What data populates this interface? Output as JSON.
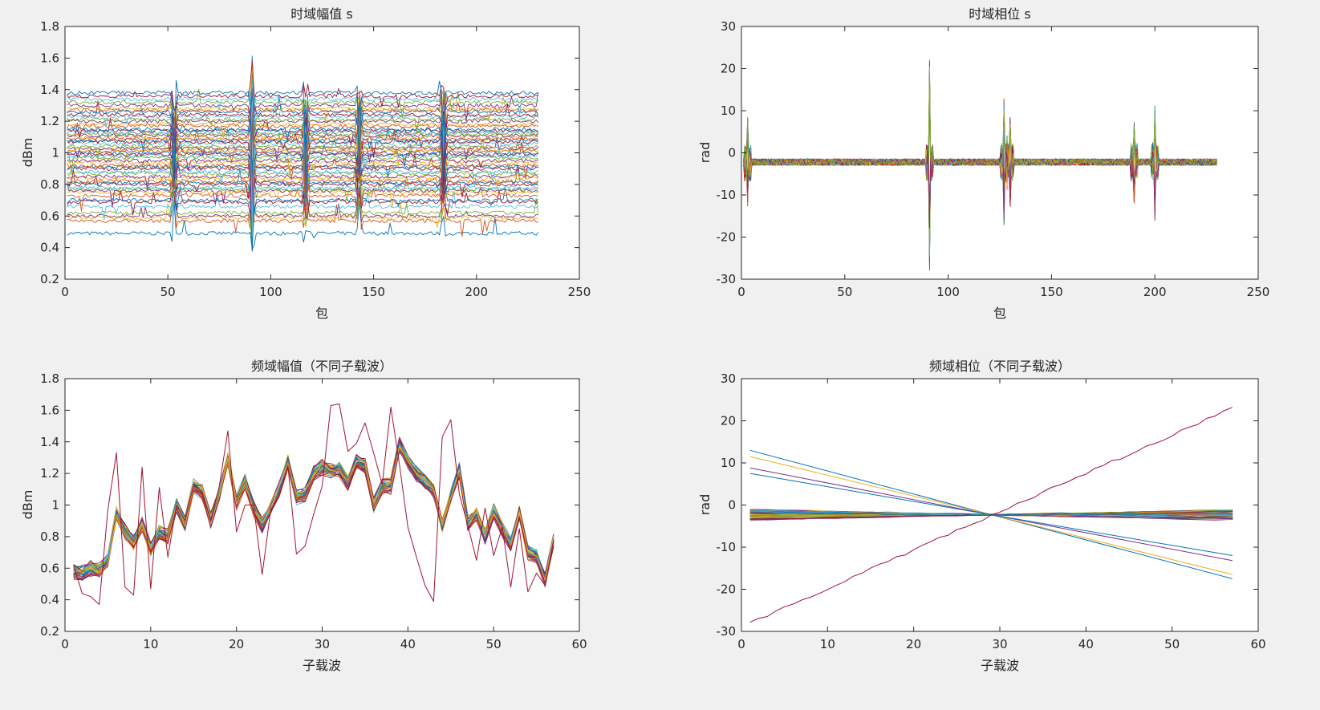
{
  "figure": {
    "background": "#f0f0f0",
    "palette": [
      "#0072BD",
      "#D95319",
      "#EDB120",
      "#7E2F8E",
      "#77AC30",
      "#4DBEEE",
      "#A2142F"
    ]
  },
  "chart_data": [
    {
      "id": "time-amplitude",
      "type": "line",
      "title": "时域幅值  s",
      "xlabel": "包",
      "ylabel": "dBm",
      "xlim": [
        0,
        250
      ],
      "ylim": [
        0.2,
        1.8
      ],
      "xticks": [
        0,
        50,
        100,
        150,
        200,
        250
      ],
      "xtick_labels": [
        "0",
        "50",
        "100",
        "150",
        "200",
        "250"
      ],
      "yticks": [
        0.2,
        0.4,
        0.6,
        0.8,
        1.0,
        1.2,
        1.4,
        1.6,
        1.8
      ],
      "ytick_labels": [
        "0.2",
        "0.4",
        "0.6",
        "0.8",
        "1",
        "1.2",
        "1.4",
        "1.6",
        "1.8"
      ],
      "grid": false,
      "x_range": [
        1,
        230
      ],
      "series_count": 57,
      "series_base_levels": [
        0.49,
        0.57,
        0.59,
        0.6,
        0.62,
        0.66,
        0.69,
        0.7,
        0.73,
        0.75,
        0.76,
        0.77,
        0.78,
        0.8,
        0.81,
        0.82,
        0.84,
        0.85,
        0.87,
        0.88,
        0.9,
        0.91,
        0.92,
        0.94,
        0.95,
        0.97,
        0.98,
        0.99,
        1.0,
        1.01,
        1.02,
        1.03,
        1.04,
        1.06,
        1.07,
        1.08,
        1.09,
        1.1,
        1.11,
        1.12,
        1.13,
        1.14,
        1.15,
        1.17,
        1.18,
        1.2,
        1.21,
        1.23,
        1.24,
        1.26,
        1.27,
        1.28,
        1.3,
        1.32,
        1.34,
        1.36,
        1.38
      ],
      "spikes": [
        {
          "x": 91,
          "peak": 1.63,
          "trough": 0.37
        },
        {
          "x": 117,
          "peak": 1.35,
          "trough": 0.53
        },
        {
          "x": 184,
          "peak": 1.42,
          "trough": 0.68
        },
        {
          "x": 53,
          "peak": 1.25,
          "trough": 0.76
        },
        {
          "x": 143,
          "peak": 1.41,
          "trough": 0.8
        }
      ]
    },
    {
      "id": "time-phase",
      "type": "line",
      "title": "时域相位  s",
      "xlabel": "包",
      "ylabel": "rad",
      "xlim": [
        0,
        250
      ],
      "ylim": [
        -30,
        30
      ],
      "xticks": [
        0,
        50,
        100,
        150,
        200,
        250
      ],
      "xtick_labels": [
        "0",
        "50",
        "100",
        "150",
        "200",
        "250"
      ],
      "yticks": [
        -30,
        -20,
        -10,
        0,
        10,
        20,
        30
      ],
      "ytick_labels": [
        "-30",
        "-20",
        "-10",
        "0",
        "10",
        "20",
        "30"
      ],
      "grid": false,
      "x_range": [
        1,
        230
      ],
      "baseline": -2.2,
      "spikes": [
        {
          "x": 3,
          "peak": 8.5,
          "trough": -13
        },
        {
          "x": 91,
          "peak": 23,
          "trough": -28
        },
        {
          "x": 127,
          "peak": 13,
          "trough": -17.5
        },
        {
          "x": 130,
          "peak": 8.5,
          "trough": -13
        },
        {
          "x": 190,
          "peak": 7.5,
          "trough": -12
        },
        {
          "x": 200,
          "peak": 11.5,
          "trough": -16.5
        }
      ]
    },
    {
      "id": "freq-amplitude",
      "type": "line",
      "title": "频域幅值（不同子载波）",
      "xlabel": "子载波",
      "ylabel": "dBm",
      "xlim": [
        0,
        60
      ],
      "ylim": [
        0.2,
        1.8
      ],
      "xticks": [
        0,
        10,
        20,
        30,
        40,
        50,
        60
      ],
      "xtick_labels": [
        "0",
        "10",
        "20",
        "30",
        "40",
        "50",
        "60"
      ],
      "yticks": [
        0.2,
        0.4,
        0.6,
        0.8,
        1.0,
        1.2,
        1.4,
        1.6,
        1.8
      ],
      "ytick_labels": [
        "0.2",
        "0.4",
        "0.6",
        "0.8",
        "1",
        "1.2",
        "1.4",
        "1.6",
        "1.8"
      ],
      "grid": false,
      "x": [
        1,
        2,
        3,
        4,
        5,
        6,
        7,
        8,
        9,
        10,
        11,
        12,
        13,
        14,
        15,
        16,
        17,
        18,
        19,
        20,
        21,
        22,
        23,
        24,
        25,
        26,
        27,
        28,
        29,
        30,
        31,
        32,
        33,
        34,
        35,
        36,
        37,
        38,
        39,
        40,
        41,
        42,
        43,
        44,
        45,
        46,
        47,
        48,
        49,
        50,
        51,
        52,
        53,
        54,
        55,
        56,
        57
      ],
      "profile": [
        0.58,
        0.57,
        0.6,
        0.58,
        0.65,
        0.95,
        0.83,
        0.76,
        0.88,
        0.72,
        0.83,
        0.8,
        1.0,
        0.88,
        1.12,
        1.08,
        0.9,
        1.08,
        1.3,
        1.02,
        1.15,
        0.98,
        0.87,
        0.98,
        1.1,
        1.27,
        1.05,
        1.07,
        1.2,
        1.24,
        1.22,
        1.23,
        1.14,
        1.28,
        1.25,
        1.0,
        1.12,
        1.12,
        1.38,
        1.28,
        1.2,
        1.15,
        1.09,
        0.87,
        1.05,
        1.22,
        0.88,
        0.95,
        0.8,
        0.96,
        0.85,
        0.75,
        0.95,
        0.7,
        0.68,
        0.52,
        0.78
      ],
      "outlier_series": [
        0.62,
        0.44,
        0.42,
        0.37,
        0.97,
        1.33,
        0.48,
        0.43,
        1.24,
        0.47,
        1.11,
        0.67,
        1.0,
        0.9,
        1.13,
        1.08,
        0.9,
        1.12,
        1.47,
        0.83,
        1.0,
        1.0,
        0.56,
        0.97,
        1.06,
        1.25,
        0.69,
        0.74,
        0.94,
        1.12,
        1.63,
        1.64,
        1.34,
        1.39,
        1.52,
        1.33,
        1.13,
        1.62,
        1.26,
        0.86,
        0.67,
        0.49,
        0.39,
        1.43,
        1.54,
        1.07,
        0.87,
        0.65,
        0.98,
        0.68,
        0.86,
        0.48,
        0.85,
        0.45,
        0.57,
        0.49,
        0.78
      ],
      "series_count": 45
    },
    {
      "id": "freq-phase",
      "type": "line",
      "title": "频域相位（不同子载波）",
      "xlabel": "子载波",
      "ylabel": "rad",
      "xlim": [
        0,
        60
      ],
      "ylim": [
        -30,
        30
      ],
      "xticks": [
        0,
        10,
        20,
        30,
        40,
        50,
        60
      ],
      "xtick_labels": [
        "0",
        "10",
        "20",
        "30",
        "40",
        "50",
        "60"
      ],
      "yticks": [
        -30,
        -20,
        -10,
        0,
        10,
        20,
        30
      ],
      "ytick_labels": [
        "-30",
        "-20",
        "-10",
        "0",
        "10",
        "20",
        "30"
      ],
      "grid": false,
      "pivot": [
        29,
        -2.3
      ],
      "x_range": [
        1,
        57
      ],
      "steep_lines": [
        {
          "start": 13,
          "end": -17.5,
          "color_index": 0
        },
        {
          "start": 11.5,
          "end": -16.5,
          "color_index": 2
        },
        {
          "start": 8.8,
          "end": -13.2,
          "color_index": 3
        },
        {
          "start": 7.5,
          "end": -12,
          "color_index": 0
        }
      ],
      "rising_line": {
        "start": -28,
        "end": 23,
        "color_index": 6
      },
      "flat_band": [
        -3.6,
        -1.0
      ],
      "flat_series_count": 50
    }
  ]
}
